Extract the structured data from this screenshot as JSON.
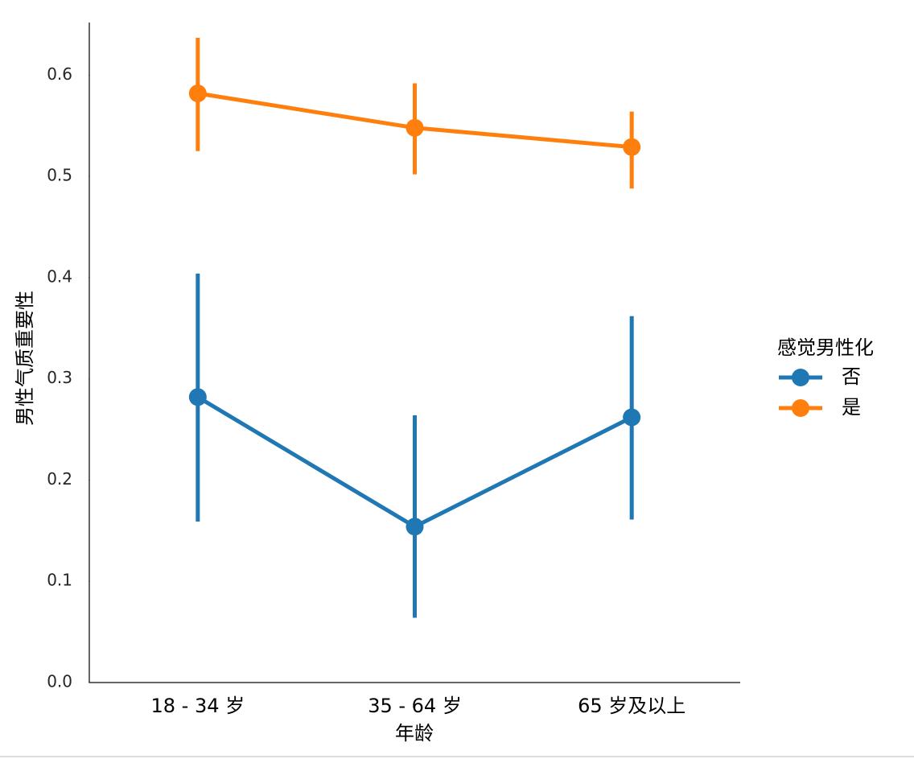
{
  "chart_data": {
    "type": "point",
    "x_label": "年龄",
    "y_label": "男性气质重要性",
    "categories": [
      "18 - 34 岁",
      "35 - 64 岁",
      "65 岁及以上"
    ],
    "legend_title": "感觉男性化",
    "legend": "right",
    "series": [
      {
        "name": "否",
        "color": "#1f77b4",
        "values": [
          0.282,
          0.154,
          0.262
        ],
        "ci": [
          [
            0.159,
            0.404
          ],
          [
            0.064,
            0.264
          ],
          [
            0.161,
            0.362
          ]
        ]
      },
      {
        "name": "是",
        "color": "#ff7f0e",
        "values": [
          0.582,
          0.548,
          0.529
        ],
        "ci": [
          [
            0.525,
            0.637
          ],
          [
            0.502,
            0.592
          ],
          [
            0.488,
            0.564
          ]
        ]
      }
    ],
    "ylim": [
      0,
      0.652
    ],
    "yticks": [
      {
        "value": 0,
        "label": "0.0"
      },
      0.1,
      0.2,
      0.3,
      0.4,
      0.5,
      0.6
    ],
    "grid": false
  }
}
